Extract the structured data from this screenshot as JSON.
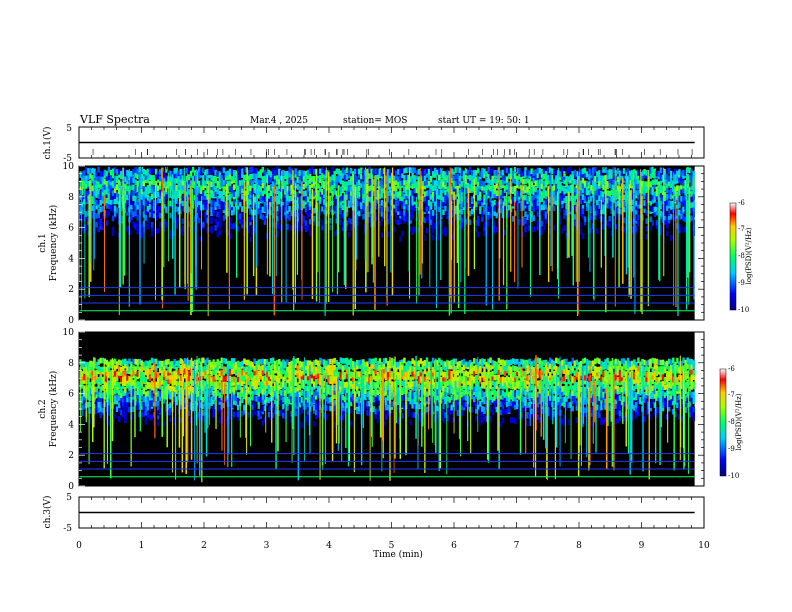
{
  "header": {
    "title": "VLF Spectra",
    "date": "Mar.4  , 2025",
    "station": "station= MOS",
    "start_ut": "start  UT =   19: 50: 1"
  },
  "chart_data": [
    {
      "type": "line",
      "id": "ch1v",
      "ylabel": "ch.1(V)",
      "ylim": [
        -5,
        5
      ],
      "yticks": [
        "5",
        "-5"
      ],
      "trace_value": 0
    },
    {
      "type": "heatmap",
      "id": "ch1",
      "ylabel_line1": "ch.1",
      "ylabel_line2": "Frequency (kHz)",
      "ylim": [
        0,
        10
      ],
      "yticks": [
        "0",
        "2",
        "4",
        "6",
        "8",
        "10"
      ],
      "band_center_khz": 8.6,
      "band_intensity": 0.45,
      "colorbar": {
        "label": "log(PSD)(V²/Hz)",
        "ticks": [
          "-6",
          "-7",
          "-8",
          "-9",
          "-10"
        ],
        "range": [
          -10,
          -6
        ]
      }
    },
    {
      "type": "heatmap",
      "id": "ch2",
      "ylabel_line1": "ch.2",
      "ylabel_line2": "Frequency (kHz)",
      "ylim": [
        0,
        10
      ],
      "yticks": [
        "0",
        "2",
        "4",
        "6",
        "8",
        "10"
      ],
      "band_center_khz": 7.0,
      "band_intensity": 0.75,
      "colorbar": {
        "label": "log(PSD)(V²/Hz)",
        "ticks": [
          "-6",
          "-7",
          "-8",
          "-9",
          "-10"
        ],
        "range": [
          -10,
          -6
        ]
      }
    },
    {
      "type": "line",
      "id": "ch3v",
      "ylabel": "ch.3(V)",
      "ylim": [
        -5,
        5
      ],
      "yticks": [
        "5",
        "-5"
      ],
      "trace_value": 0
    }
  ],
  "time_axis": {
    "label": "Time  (min)",
    "range": [
      0,
      10
    ],
    "ticks": [
      "0",
      "1",
      "2",
      "3",
      "4",
      "5",
      "6",
      "7",
      "8",
      "9",
      "10"
    ],
    "data_end": 9.85
  },
  "colors": {
    "background": "#000000",
    "trace": "#000000"
  }
}
